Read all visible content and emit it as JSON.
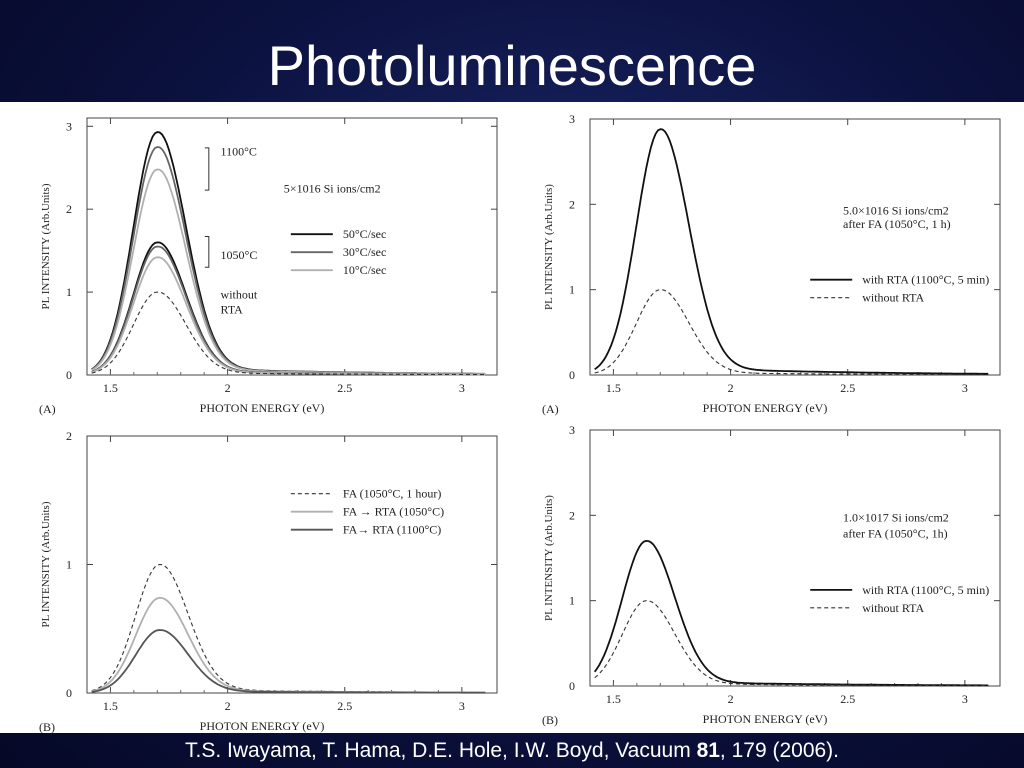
{
  "slide": {
    "title": "Photoluminescence",
    "citation": {
      "prefix": "T.S. Iwayama, T. Hama, D.E. Hole, I.W. Boyd, Vacuum ",
      "volume": "81",
      "suffix": ", 179 (2006)."
    }
  },
  "chart_data": [
    {
      "type": "line",
      "panel_label": "(A)",
      "xlabel": "PHOTON ENERGY (eV)",
      "ylabel": "PL INTENSITY (Arb.Units)",
      "xlim": [
        1.4,
        3.15
      ],
      "ylim": [
        0,
        3.1
      ],
      "xticks": [
        1.5,
        2,
        2.5,
        3
      ],
      "xtick_labels": [
        "1.5",
        "2",
        "2.5",
        "3"
      ],
      "yticks": [
        0,
        1,
        2,
        3
      ],
      "ytick_labels": [
        "0",
        "1",
        "2",
        "3"
      ],
      "grid": false,
      "annotations": [
        {
          "text": "1100°C",
          "x": 1.97,
          "y": 2.65
        },
        {
          "text": "1050°C",
          "x": 1.97,
          "y": 1.4
        },
        {
          "text": "without",
          "x": 1.97,
          "y": 0.92
        },
        {
          "text": "RTA",
          "x": 1.97,
          "y": 0.74
        },
        {
          "text": "5×1016 Si ions/cm2",
          "x": 2.24,
          "y": 2.2
        }
      ],
      "legend": {
        "placement": "right-middle",
        "entries": [
          "50°C/sec",
          "30°C/sec",
          "10°C/sec"
        ]
      },
      "series": [
        {
          "name": "50°C/sec",
          "color": "#111111",
          "dash": "",
          "peak_x": 1.7,
          "peak": 2.93,
          "width": 0.12,
          "tail": 0.035
        },
        {
          "name": "30°C/sec",
          "color": "#666666",
          "dash": "",
          "peak_x": 1.7,
          "peak": 2.75,
          "width": 0.12,
          "tail": 0.035
        },
        {
          "name": "10°C/sec",
          "color": "#b0b0b0",
          "dash": "",
          "peak_x": 1.7,
          "peak": 2.48,
          "width": 0.12,
          "tail": 0.035
        },
        {
          "name": "50°C/sec",
          "color": "#111111",
          "dash": "",
          "peak_x": 1.7,
          "peak": 1.6,
          "width": 0.12,
          "tail": 0.035
        },
        {
          "name": "30°C/sec",
          "color": "#666666",
          "dash": "",
          "peak_x": 1.7,
          "peak": 1.55,
          "width": 0.12,
          "tail": 0.035
        },
        {
          "name": "10°C/sec",
          "color": "#b0b0b0",
          "dash": "",
          "peak_x": 1.7,
          "peak": 1.42,
          "width": 0.12,
          "tail": 0.035
        },
        {
          "name": "without RTA",
          "color": "#333333",
          "dash": "4,3",
          "peak_x": 1.7,
          "peak": 1.0,
          "width": 0.12,
          "tail": 0.035
        }
      ]
    },
    {
      "type": "line",
      "panel_label": "(A)",
      "xlabel": "PHOTON ENERGY (eV)",
      "ylabel": "PL INTENSITY (Arb.Units)",
      "xlim": [
        1.4,
        3.15
      ],
      "ylim": [
        0,
        3.0
      ],
      "xticks": [
        1.5,
        2,
        2.5,
        3
      ],
      "xtick_labels": [
        "1.5",
        "2",
        "2.5",
        "3"
      ],
      "yticks": [
        0,
        1,
        2,
        3
      ],
      "ytick_labels": [
        "0",
        "1",
        "2",
        "3"
      ],
      "grid": false,
      "annotations": [
        {
          "text": "5.0×1016 Si ions/cm2",
          "x": 2.48,
          "y": 1.88
        },
        {
          "text": "after FA (1050°C, 1 h)",
          "x": 2.48,
          "y": 1.72
        }
      ],
      "legend": {
        "placement": "right-middle",
        "entries": [
          "with RTA (1100°C, 5 min)",
          "without RTA"
        ]
      },
      "series": [
        {
          "name": "with RTA (1100°C, 5 min)",
          "color": "#111111",
          "dash": "",
          "peak_x": 1.7,
          "peak": 2.88,
          "width": 0.12,
          "tail": 0.035
        },
        {
          "name": "without RTA",
          "color": "#333333",
          "dash": "4,3",
          "peak_x": 1.7,
          "peak": 1.0,
          "width": 0.12,
          "tail": 0.035
        }
      ]
    },
    {
      "type": "line",
      "panel_label": "(B)",
      "xlabel": "PHOTON ENERGY (eV)",
      "ylabel": "PL INTENSITY (Arb.Units)",
      "xlim": [
        1.4,
        3.15
      ],
      "ylim": [
        0,
        2.0
      ],
      "xticks": [
        1.5,
        2,
        2.5,
        3
      ],
      "xtick_labels": [
        "1.5",
        "2",
        "2.5",
        "3"
      ],
      "yticks": [
        0,
        1,
        2
      ],
      "ytick_labels": [
        "0",
        "1",
        "2"
      ],
      "grid": false,
      "annotations": [],
      "legend": {
        "placement": "right-middle",
        "entries": [
          "FA (1050°C, 1 hour)",
          "FA → RTA (1050°C)",
          "FA→ RTA (1100°C)"
        ]
      },
      "series": [
        {
          "name": "FA (1050°C, 1 hour)",
          "color": "#333333",
          "dash": "4,3",
          "peak_x": 1.71,
          "peak": 1.0,
          "width": 0.12,
          "tail": 0.035
        },
        {
          "name": "FA → RTA (1050°C)",
          "color": "#b0b0b0",
          "dash": "",
          "peak_x": 1.71,
          "peak": 0.74,
          "width": 0.12,
          "tail": 0.035
        },
        {
          "name": "FA→ RTA (1100°C)",
          "color": "#555555",
          "dash": "",
          "peak_x": 1.71,
          "peak": 0.49,
          "width": 0.12,
          "tail": 0.035
        }
      ]
    },
    {
      "type": "line",
      "panel_label": "(B)",
      "xlabel": "PHOTON ENERGY (eV)",
      "ylabel": "PL INTENSITY (Arb.Units)",
      "xlim": [
        1.4,
        3.15
      ],
      "ylim": [
        0,
        3.0
      ],
      "xticks": [
        1.5,
        2,
        2.5,
        3
      ],
      "xtick_labels": [
        "1.5",
        "2",
        "2.5",
        "3"
      ],
      "yticks": [
        0,
        1,
        2,
        3
      ],
      "ytick_labels": [
        "0",
        "1",
        "2",
        "3"
      ],
      "grid": false,
      "annotations": [
        {
          "text": "1.0×1017 Si ions/cm2",
          "x": 2.48,
          "y": 1.93
        },
        {
          "text": "after FA (1050°C, 1h)",
          "x": 2.48,
          "y": 1.74
        }
      ],
      "legend": {
        "placement": "right-middle",
        "entries": [
          "with RTA (1100°C, 5 min)",
          "without RTA"
        ]
      },
      "series": [
        {
          "name": "with RTA (1100°C, 5 min)",
          "color": "#111111",
          "dash": "",
          "peak_x": 1.64,
          "peak": 1.7,
          "width": 0.12,
          "tail": 0.035
        },
        {
          "name": "without RTA",
          "color": "#333333",
          "dash": "4,3",
          "peak_x": 1.64,
          "peak": 1.0,
          "width": 0.12,
          "tail": 0.035
        }
      ]
    }
  ]
}
